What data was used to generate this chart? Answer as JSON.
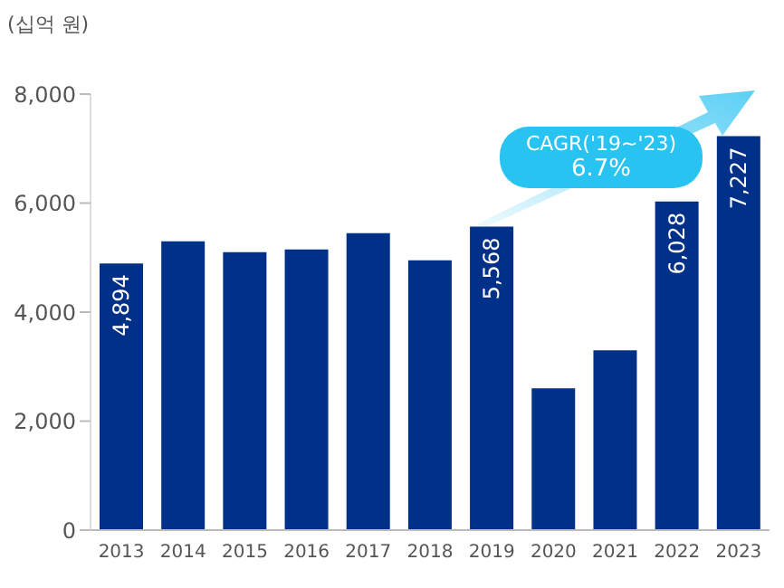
{
  "chart_data": {
    "type": "bar",
    "ylabel": "(십억 원)",
    "categories": [
      "2013",
      "2014",
      "2015",
      "2016",
      "2017",
      "2018",
      "2019",
      "2020",
      "2021",
      "2022",
      "2023"
    ],
    "values": [
      4894,
      5300,
      5100,
      5150,
      5450,
      4950,
      5568,
      2600,
      3300,
      6028,
      7227
    ],
    "value_labels": [
      "4,894",
      null,
      null,
      null,
      null,
      null,
      "5,568",
      null,
      null,
      "6,028",
      "7,227"
    ],
    "color": "#003087",
    "ylim": [
      0,
      8000
    ],
    "yticks": [
      {
        "value": 0,
        "label": "0"
      },
      {
        "value": 2000,
        "label": "2,000"
      },
      {
        "value": 4000,
        "label": "4,000"
      },
      {
        "value": 6000,
        "label": "6,000"
      },
      {
        "value": 8000,
        "label": "8,000"
      }
    ],
    "grid": false,
    "annotations": [
      "CAGR('19~'23)",
      "6.7%"
    ]
  }
}
